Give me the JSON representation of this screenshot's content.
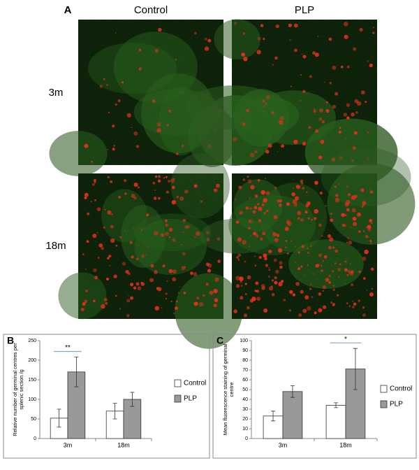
{
  "panel_a": {
    "label": "A",
    "columns": [
      "Control",
      "PLP"
    ],
    "rows": [
      "3m",
      "18m"
    ]
  },
  "chart_data": [
    {
      "type": "bar",
      "panel": "B",
      "ylabel": "Relative number of germinal centres per splenic section /g",
      "categories": [
        "3m",
        "18m"
      ],
      "series": [
        {
          "name": "Control",
          "color": "#ffffff",
          "values": [
            52,
            70
          ],
          "errors": [
            23,
            20
          ]
        },
        {
          "name": "PLP",
          "color": "#999999",
          "values": [
            170,
            100
          ],
          "errors": [
            38,
            18
          ]
        }
      ],
      "significance": [
        "**",
        null
      ],
      "ylim": [
        0,
        250
      ],
      "yticks": [
        0,
        50,
        100,
        150,
        200,
        250
      ],
      "legend": "right"
    },
    {
      "type": "bar",
      "panel": "C",
      "ylabel": "Mean fluorescence staining of germinal centre",
      "categories": [
        "3m",
        "18m"
      ],
      "series": [
        {
          "name": "Control",
          "color": "#ffffff",
          "values": [
            23,
            34
          ],
          "errors": [
            5,
            2.5
          ]
        },
        {
          "name": "PLP",
          "color": "#999999",
          "values": [
            48,
            71
          ],
          "errors": [
            6,
            21
          ]
        }
      ],
      "significance": [
        null,
        "*"
      ],
      "ylim": [
        0,
        100
      ],
      "yticks": [
        0,
        10,
        20,
        30,
        40,
        50,
        60,
        70,
        80,
        90,
        100
      ],
      "legend": "right"
    }
  ]
}
